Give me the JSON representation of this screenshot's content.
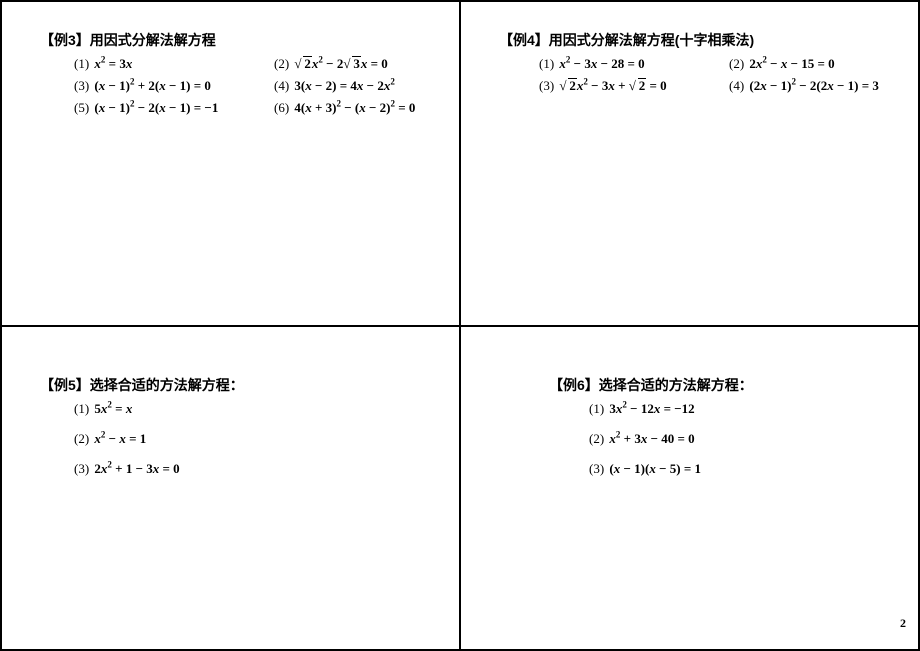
{
  "page_number": "2",
  "ex3": {
    "title": "【例3】用因式分解法解方程",
    "items": [
      {
        "idx": "(1)",
        "html": "<span class='it'>x</span><sup>2</sup> = 3<span class='it'>x</span>"
      },
      {
        "idx": "(2)",
        "html": "<span class='sqrt'><span class='sqrt-body'>2</span></span><span class='it'>x</span><sup>2</sup> − 2<span class='sqrt'><span class='sqrt-body'>3</span></span><span class='it'>x</span> = 0"
      },
      {
        "idx": "(3)",
        "html": "(<span class='it'>x</span> − 1)<sup>2</sup> + 2(<span class='it'>x</span> − 1) = 0"
      },
      {
        "idx": "(4)",
        "html": "3(<span class='it'>x</span> − 2) = 4<span class='it'>x</span> − 2<span class='it'>x</span><sup>2</sup>"
      },
      {
        "idx": "(5)",
        "html": "(<span class='it'>x</span> − 1)<sup>2</sup> − 2(<span class='it'>x</span> − 1) = −1"
      },
      {
        "idx": "(6)",
        "html": "4(<span class='it'>x</span> + 3)<sup>2</sup> − (<span class='it'>x</span> − 2)<sup>2</sup> = 0"
      }
    ]
  },
  "ex4": {
    "title": "【例4】用因式分解法解方程(十字相乘法)",
    "items": [
      {
        "idx": "(1)",
        "html": "<span class='it'>x</span><sup>2</sup> − 3<span class='it'>x</span> − 28 = 0"
      },
      {
        "idx": "(2)",
        "html": "2<span class='it'>x</span><sup>2</sup> − <span class='it'>x</span> − 15 = 0"
      },
      {
        "idx": "(3)",
        "html": "<span class='sqrt'><span class='sqrt-body'>2</span></span><span class='it'>x</span><sup>2</sup> − 3<span class='it'>x</span> + <span class='sqrt'><span class='sqrt-body'>2</span></span> = 0"
      },
      {
        "idx": "(4)",
        "html": "(2<span class='it'>x</span> − 1)<sup>2</sup> − 2(2<span class='it'>x</span> − 1) = 3"
      }
    ]
  },
  "ex5": {
    "title": "【例5】选择合适的方法解方程：",
    "items": [
      {
        "idx": "(1)",
        "html": "5<span class='it'>x</span><sup>2</sup> = <span class='it'>x</span>"
      },
      {
        "idx": "(2)",
        "html": "<span class='it'>x</span><sup>2</sup> − <span class='it'>x</span> = 1"
      },
      {
        "idx": "(3)",
        "html": "2<span class='it'>x</span><sup>2</sup> + 1 − 3<span class='it'>x</span> = 0"
      }
    ]
  },
  "ex6": {
    "title": "【例6】选择合适的方法解方程：",
    "items": [
      {
        "idx": "(1)",
        "html": "3<span class='it'>x</span><sup>2</sup> − 12<span class='it'>x</span> = −12"
      },
      {
        "idx": "(2)",
        "html": "<span class='it'>x</span><sup>2</sup> + 3<span class='it'>x</span> − 40 = 0"
      },
      {
        "idx": "(3)",
        "html": "(<span class='it'>x</span> − 1)(<span class='it'>x</span> − 5) = 1"
      }
    ]
  }
}
